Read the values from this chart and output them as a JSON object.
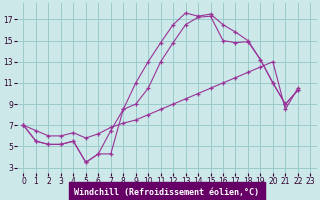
{
  "xlabel": "Windchill (Refroidissement éolien,°C)",
  "bg_color": "#cce8e8",
  "grid_color": "#99cccc",
  "line_color": "#993399",
  "xlim": [
    -0.5,
    23.5
  ],
  "ylim": [
    2.5,
    18.5
  ],
  "xticks": [
    0,
    1,
    2,
    3,
    4,
    5,
    6,
    7,
    8,
    9,
    10,
    11,
    12,
    13,
    14,
    15,
    16,
    17,
    18,
    19,
    20,
    21,
    22,
    23
  ],
  "yticks": [
    3,
    5,
    7,
    9,
    11,
    13,
    15,
    17
  ],
  "series": [
    [
      7.0,
      5.5,
      5.2,
      5.2,
      5.5,
      3.5,
      4.3,
      4.3,
      8.5,
      11.0,
      13.0,
      14.8,
      16.5,
      17.6,
      17.3,
      17.5,
      16.5,
      15.8,
      15.0,
      13.2,
      11.0,
      9.0,
      10.3
    ],
    [
      7.0,
      5.5,
      5.2,
      5.2,
      5.5,
      3.5,
      4.3,
      6.5,
      8.5,
      9.0,
      10.5,
      13.0,
      14.8,
      16.5,
      17.2,
      17.3,
      15.0,
      14.8,
      14.9,
      13.2,
      11.0,
      9.0,
      10.3
    ],
    [
      7.0,
      6.5,
      6.0,
      6.0,
      6.3,
      5.8,
      6.2,
      6.8,
      7.2,
      7.5,
      8.0,
      8.5,
      9.0,
      9.5,
      10.0,
      10.5,
      11.0,
      11.5,
      12.0,
      12.5,
      13.0,
      8.5,
      10.5
    ]
  ],
  "xlabel_fontsize": 6,
  "tick_fontsize": 5.5,
  "xlabel_color": "#330033",
  "tick_color": "#330033"
}
